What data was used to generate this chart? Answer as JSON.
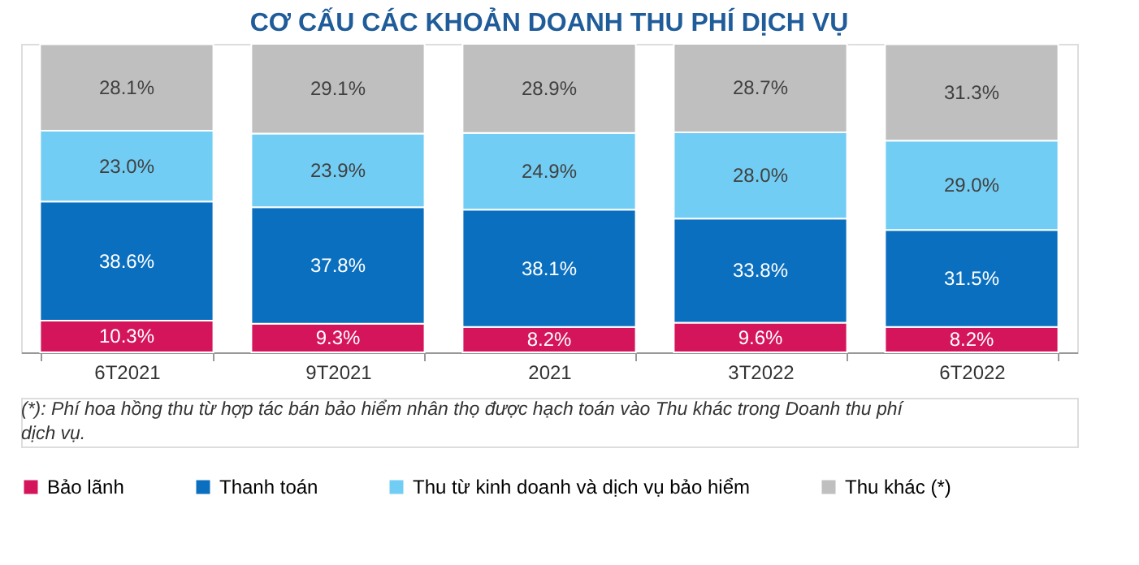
{
  "chart_data": {
    "type": "bar",
    "stacked": true,
    "title": "CƠ CẤU CÁC KHOẢN DOANH THU PHÍ DỊCH VỤ",
    "categories": [
      "6T2021",
      "9T2021",
      "2021",
      "3T2022",
      "6T2022"
    ],
    "series": [
      {
        "name": "Bảo lãnh",
        "color": "#d5155b",
        "values": [
          10.3,
          9.3,
          8.2,
          9.6,
          8.2
        ],
        "value_labels": [
          "10.3%",
          "9.3%",
          "8.2%",
          "9.6%",
          "8.2%"
        ]
      },
      {
        "name": "Thanh toán",
        "color": "#0a6fbf",
        "values": [
          38.6,
          37.8,
          38.1,
          33.8,
          31.5
        ],
        "value_labels": [
          "38.6%",
          "37.8%",
          "38.1%",
          "33.8%",
          "31.5%"
        ]
      },
      {
        "name": "Thu từ kinh doanh và dịch vụ bảo hiểm",
        "color": "#72cdf4",
        "values": [
          23.0,
          23.9,
          24.9,
          28.0,
          29.0
        ],
        "value_labels": [
          "23.0%",
          "23.9%",
          "24.9%",
          "28.0%",
          "29.0%"
        ]
      },
      {
        "name": "Thu khác (*)",
        "color": "#bfbfbf",
        "values": [
          28.1,
          29.1,
          28.9,
          28.7,
          31.3
        ],
        "value_labels": [
          "28.1%",
          "29.1%",
          "28.9%",
          "28.7%",
          "31.3%"
        ]
      }
    ],
    "legend": "bottom",
    "grid": false,
    "annotations": [
      "(*): Phí hoa hồng thu từ hợp tác bán bảo hiểm nhân thọ được hạch toán vào Thu khác trong Doanh thu phí dịch vụ."
    ]
  }
}
